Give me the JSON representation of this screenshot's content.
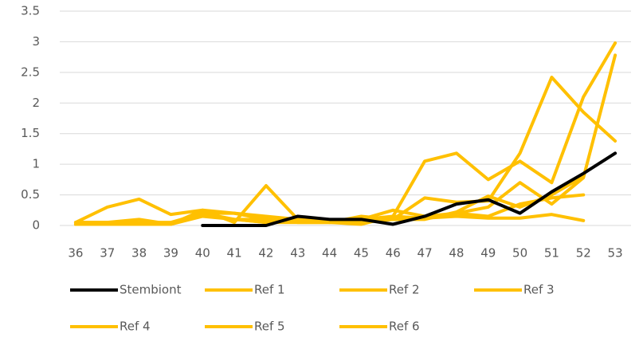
{
  "chart_data": {
    "type": "line",
    "categories": [
      "36",
      "37",
      "38",
      "39",
      "40",
      "41",
      "42",
      "43",
      "44",
      "45",
      "46",
      "47",
      "48",
      "49",
      "50",
      "51",
      "52",
      "53"
    ],
    "ylim": [
      0,
      3.5
    ],
    "yticks": [
      0,
      0.5,
      1,
      1.5,
      2,
      2.5,
      3,
      3.5
    ],
    "grid": true,
    "legend": "bottom",
    "series": [
      {
        "name": "Stembiont",
        "color": "#000000",
        "values": [
          null,
          null,
          null,
          null,
          0,
          0,
          0,
          0.15,
          0.1,
          0.1,
          0.02,
          0.15,
          0.35,
          0.42,
          0.2,
          0.55,
          0.85,
          1.18
        ]
      },
      {
        "name": "Ref 1",
        "color": "#FFC000",
        "values": [
          0.05,
          0.3,
          0.43,
          0.18,
          0.25,
          0.05,
          0.65,
          0.1,
          0.05,
          0.1,
          0.15,
          1.05,
          1.18,
          0.75,
          1.05,
          0.7,
          2.1,
          2.98
        ]
      },
      {
        "name": "Ref 2",
        "color": "#FFC000",
        "values": [
          0.05,
          0.05,
          0.1,
          0.02,
          0.25,
          0.2,
          0.15,
          0.1,
          0.05,
          0.15,
          0.1,
          0.45,
          0.38,
          0.4,
          1.18,
          2.42,
          1.85,
          1.38
        ]
      },
      {
        "name": "Ref 3",
        "color": "#FFC000",
        "values": [
          0.02,
          0.02,
          0.02,
          0.02,
          0.2,
          0.1,
          0.05,
          0.05,
          0.05,
          0.05,
          0.1,
          0.12,
          0.2,
          0.3,
          0.7,
          0.35,
          0.78,
          2.78
        ]
      },
      {
        "name": "Ref 4",
        "color": "#FFC000",
        "values": [
          0.05,
          0.05,
          0.05,
          0.05,
          0.2,
          0.2,
          0.1,
          0.05,
          0.05,
          0.1,
          0.25,
          0.15,
          0.2,
          0.15,
          0.35,
          0.45,
          0.5,
          null
        ]
      },
      {
        "name": "Ref 5",
        "color": "#FFC000",
        "values": [
          0.02,
          0.02,
          0.02,
          0.02,
          0.15,
          0.1,
          0.1,
          0.05,
          0.05,
          0.05,
          0.1,
          0.1,
          0.22,
          0.48,
          0.3,
          0.5,
          0.8,
          null
        ]
      },
      {
        "name": "Ref 6",
        "color": "#FFC000",
        "values": [
          0.02,
          0.02,
          0.02,
          0.02,
          0.18,
          0.1,
          0.05,
          0.05,
          0.05,
          0.02,
          0.15,
          0.12,
          0.15,
          0.12,
          0.12,
          0.18,
          0.08,
          null
        ]
      }
    ]
  }
}
